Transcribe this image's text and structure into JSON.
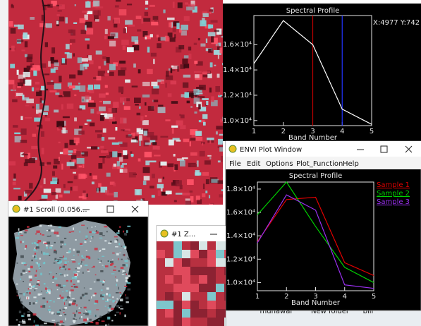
{
  "chart_data": [
    {
      "type": "line",
      "title": "Spectral Profile",
      "x_label": "Band Number",
      "cursor_readout": "X:4977 Y:742",
      "x": [
        1,
        2,
        3,
        4,
        5
      ],
      "xlim": [
        1,
        5
      ],
      "xticks": [
        1,
        2,
        3,
        4,
        5
      ],
      "ylim": [
        9600,
        18300
      ],
      "yticks": [
        {
          "value": 10000,
          "label": "1.0×10⁴"
        },
        {
          "value": 12000,
          "label": "1.2×10⁴"
        },
        {
          "value": 14000,
          "label": "1.4×10⁴"
        },
        {
          "value": 16000,
          "label": "1.6×10⁴"
        }
      ],
      "series": [
        {
          "color": "#ffffff",
          "values": [
            14500,
            17900,
            16000,
            10900,
            9700
          ]
        }
      ],
      "markers": [
        {
          "x": 3,
          "color": "#c00000"
        },
        {
          "x": 4,
          "color": "#2233ff"
        }
      ]
    },
    {
      "type": "line",
      "title": "Spectral Profile",
      "x_label": "Band Number",
      "x": [
        1,
        2,
        3,
        4,
        5
      ],
      "xlim": [
        1,
        5
      ],
      "xticks": [
        1,
        2,
        3,
        4,
        5
      ],
      "ylim": [
        9300,
        18600
      ],
      "yticks": [
        {
          "value": 10000,
          "label": "1.0×10⁴"
        },
        {
          "value": 12000,
          "label": "1.2×10⁴"
        },
        {
          "value": 14000,
          "label": "1.4×10⁴"
        },
        {
          "value": 16000,
          "label": "1.6×10⁴"
        },
        {
          "value": 18000,
          "label": "1.8×10⁴"
        }
      ],
      "series": [
        {
          "name": "Sample 1",
          "color": "#e00000",
          "values": [
            13500,
            17100,
            17300,
            11700,
            10600
          ]
        },
        {
          "name": "Sample 2",
          "color": "#00d000",
          "values": [
            15800,
            18600,
            14800,
            11300,
            10000
          ]
        },
        {
          "name": "Sample 3",
          "color": "#9a30f0",
          "values": [
            13400,
            17500,
            16200,
            9800,
            9500
          ]
        }
      ]
    }
  ],
  "windows": {
    "plot": {
      "title": "ENVI Plot Window",
      "menu": [
        "File",
        "Edit",
        "Options",
        "Plot_Function",
        "Help"
      ]
    },
    "scroll": {
      "title": "#1 Scroll (0.056..."
    },
    "zoom": {
      "title": "#1 Z..."
    }
  },
  "desktop": {
    "icons": [
      "munawar",
      "New folder",
      "bill"
    ]
  }
}
